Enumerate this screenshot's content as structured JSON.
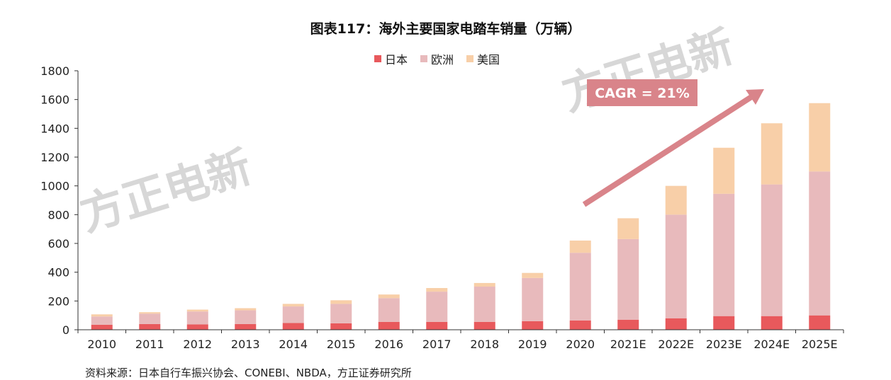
{
  "chart_data": {
    "type": "bar",
    "stacked": true,
    "title": "图表117：海外主要国家电踏车销量（万辆）",
    "categories": [
      "2010",
      "2011",
      "2012",
      "2013",
      "2014",
      "2015",
      "2016",
      "2017",
      "2018",
      "2019",
      "2020",
      "2021E",
      "2022E",
      "2023E",
      "2024E",
      "2025E"
    ],
    "series": [
      {
        "name": "日本",
        "color": "#e8595c",
        "values": [
          35,
          40,
          37,
          40,
          47,
          45,
          55,
          55,
          55,
          60,
          65,
          70,
          80,
          95,
          95,
          100
        ]
      },
      {
        "name": "欧洲",
        "color": "#e8babc",
        "values": [
          57,
          72,
          90,
          95,
          115,
          135,
          165,
          210,
          245,
          300,
          470,
          560,
          720,
          850,
          915,
          1000
        ]
      },
      {
        "name": "美国",
        "color": "#f8cfa8",
        "values": [
          15,
          10,
          13,
          15,
          18,
          25,
          25,
          25,
          25,
          35,
          85,
          145,
          200,
          320,
          425,
          475
        ]
      }
    ],
    "ylim": [
      0,
      1800
    ],
    "yticks": [
      0,
      200,
      400,
      600,
      800,
      1000,
      1200,
      1400,
      1600,
      1800
    ],
    "legend_position": "top-center",
    "annotation": "CAGR = 21%",
    "watermark": "方正电新",
    "source": "资料来源：日本自行车振兴协会、CONEBI、NBDA，方正证券研究所"
  },
  "colors": {
    "axis": "#333333",
    "annotation_bg": "#d9848a",
    "arrow": "#d9848a",
    "watermark": "#d7d7d7"
  }
}
